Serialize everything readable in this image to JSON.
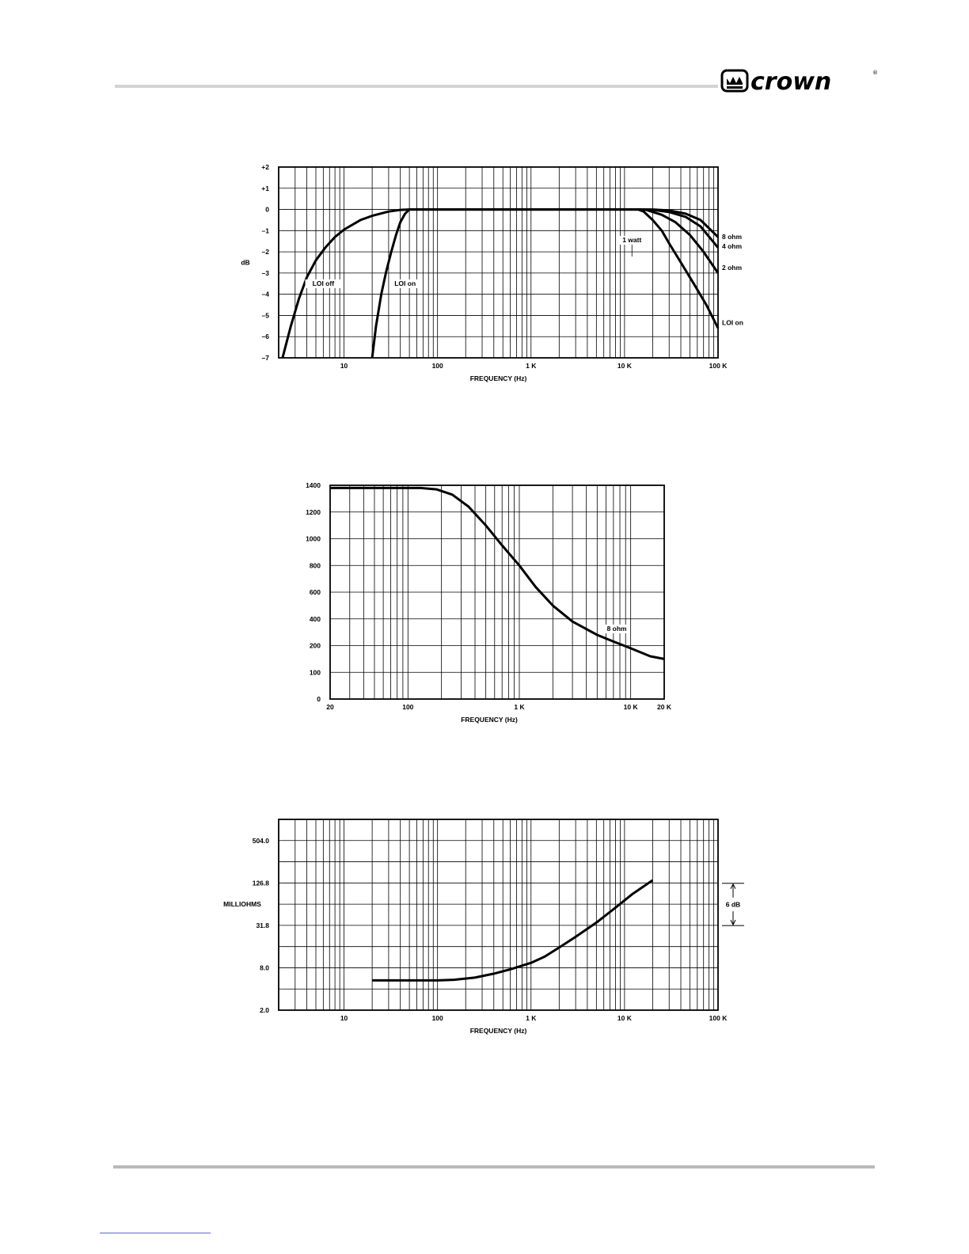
{
  "brand": {
    "name": "crown",
    "registered": "®"
  },
  "chart_data": [
    {
      "id": "chart1",
      "type": "line",
      "x_scale": "log",
      "xlim": [
        2,
        100000
      ],
      "ylim": [
        -7,
        2
      ],
      "xlabel": "FREQUENCY (Hz)",
      "ylabel": "dB",
      "grid": true,
      "y_ticks": [
        {
          "v": 2,
          "label": "+2"
        },
        {
          "v": 1,
          "label": "+1"
        },
        {
          "v": 0,
          "label": "0"
        },
        {
          "v": -1,
          "label": "–1"
        },
        {
          "v": -2,
          "label": "–2"
        },
        {
          "v": -3,
          "label": "–3"
        },
        {
          "v": -4,
          "label": "–4"
        },
        {
          "v": -5,
          "label": "–5"
        },
        {
          "v": -6,
          "label": "–6"
        },
        {
          "v": -7,
          "label": "–7"
        }
      ],
      "x_ticks": [
        {
          "v": 10,
          "label": "10"
        },
        {
          "v": 100,
          "label": "100"
        },
        {
          "v": 1000,
          "label": "1 K"
        },
        {
          "v": 10000,
          "label": "10 K"
        },
        {
          "v": 100000,
          "label": "100 K"
        }
      ],
      "series": [
        {
          "name": "LOI off",
          "points": [
            [
              2.2,
              -7
            ],
            [
              2.7,
              -5.5
            ],
            [
              3.3,
              -4.2
            ],
            [
              4,
              -3.2
            ],
            [
              5,
              -2.4
            ],
            [
              6.3,
              -1.8
            ],
            [
              8,
              -1.3
            ],
            [
              10,
              -0.95
            ],
            [
              15,
              -0.5
            ],
            [
              20,
              -0.3
            ],
            [
              30,
              -0.1
            ],
            [
              40,
              -0.02
            ],
            [
              50,
              0
            ],
            [
              14000,
              0
            ]
          ]
        },
        {
          "name": "LOI on",
          "points": [
            [
              20,
              -7
            ],
            [
              22,
              -5.5
            ],
            [
              25,
              -4
            ],
            [
              28,
              -3
            ],
            [
              32,
              -2
            ],
            [
              36,
              -1.2
            ],
            [
              40,
              -0.6
            ],
            [
              45,
              -0.2
            ],
            [
              50,
              0
            ],
            [
              14000,
              0
            ]
          ]
        },
        {
          "name": "8 ohm",
          "points": [
            [
              14000,
              0
            ],
            [
              20000,
              0
            ],
            [
              30000,
              -0.05
            ],
            [
              45000,
              -0.2
            ],
            [
              65000,
              -0.5
            ],
            [
              100000,
              -1.3
            ]
          ]
        },
        {
          "name": "4 ohm",
          "points": [
            [
              14000,
              0
            ],
            [
              20000,
              -0.02
            ],
            [
              30000,
              -0.12
            ],
            [
              45000,
              -0.35
            ],
            [
              65000,
              -0.8
            ],
            [
              100000,
              -1.8
            ]
          ]
        },
        {
          "name": "2 ohm",
          "points": [
            [
              14000,
              0
            ],
            [
              17000,
              -0.02
            ],
            [
              25000,
              -0.25
            ],
            [
              35000,
              -0.6
            ],
            [
              50000,
              -1.2
            ],
            [
              70000,
              -2
            ],
            [
              100000,
              -3
            ]
          ]
        },
        {
          "name": "LOI on",
          "points": [
            [
              14000,
              0
            ],
            [
              16000,
              -0.1
            ],
            [
              20000,
              -0.5
            ],
            [
              25000,
              -1
            ],
            [
              30000,
              -1.6
            ],
            [
              40000,
              -2.5
            ],
            [
              55000,
              -3.5
            ],
            [
              75000,
              -4.5
            ],
            [
              100000,
              -5.6
            ]
          ]
        }
      ],
      "annotations": [
        {
          "text": "LOI  off",
          "x": 6,
          "y": -3.6
        },
        {
          "text": "LOI  on",
          "x": 45,
          "y": -3.6
        },
        {
          "text": "1 watt",
          "x": 12000,
          "y": -1.55
        },
        {
          "text": "8 ohm",
          "x": 105000,
          "y": -1.4
        },
        {
          "text": "4 ohm",
          "x": 105000,
          "y": -1.85
        },
        {
          "text": "2 ohm",
          "x": 105000,
          "y": -2.85
        },
        {
          "text": "LOI on",
          "x": 105000,
          "y": -5.45
        }
      ]
    },
    {
      "id": "chart2",
      "type": "line",
      "x_scale": "log",
      "xlim": [
        20,
        20000
      ],
      "xlabel": "FREQUENCY (Hz)",
      "ylabel": "",
      "grid": true,
      "y_ticks": [
        {
          "v": 1400,
          "label": "1400"
        },
        {
          "v": 1200,
          "label": "1200"
        },
        {
          "v": 1000,
          "label": "1000"
        },
        {
          "v": 800,
          "label": "800"
        },
        {
          "v": 600,
          "label": "600"
        },
        {
          "v": 400,
          "label": "400"
        },
        {
          "v": 200,
          "label": "200"
        },
        {
          "v": 100,
          "label": "100"
        },
        {
          "v": 0,
          "label": "0"
        }
      ],
      "x_ticks": [
        {
          "v": 20,
          "label": "20"
        },
        {
          "v": 100,
          "label": "100"
        },
        {
          "v": 1000,
          "label": "1 K"
        },
        {
          "v": 10000,
          "label": "10 K"
        },
        {
          "v": 20000,
          "label": "20 K"
        }
      ],
      "series": [
        {
          "name": "8 ohm",
          "points": [
            [
              20,
              1380
            ],
            [
              130,
              1380
            ],
            [
              180,
              1370
            ],
            [
              250,
              1330
            ],
            [
              350,
              1240
            ],
            [
              500,
              1100
            ],
            [
              700,
              950
            ],
            [
              1000,
              800
            ],
            [
              1400,
              640
            ],
            [
              2000,
              500
            ],
            [
              3000,
              380
            ],
            [
              5000,
              280
            ],
            [
              7000,
              230
            ],
            [
              10000,
              190
            ],
            [
              15000,
              160
            ],
            [
              20000,
              150
            ]
          ]
        }
      ],
      "annotations": [
        {
          "text": "8 ohm",
          "x": 7500,
          "y": 310
        }
      ]
    },
    {
      "id": "chart3",
      "type": "line",
      "x_scale": "log",
      "y_scale": "log",
      "xlim": [
        2,
        100000
      ],
      "ylim": [
        2.0,
        1000
      ],
      "xlabel": "FREQUENCY (Hz)",
      "ylabel": "MILLIOHMS",
      "grid": true,
      "y_ticks": [
        {
          "v": 504.0,
          "label": "504.0"
        },
        {
          "v": 126.8,
          "label": "126.8"
        },
        {
          "v": 31.8,
          "label": "31.8"
        },
        {
          "v": 8.0,
          "label": "8.0"
        },
        {
          "v": 2.0,
          "label": "2.0"
        }
      ],
      "x_ticks": [
        {
          "v": 10,
          "label": "10"
        },
        {
          "v": 100,
          "label": "100"
        },
        {
          "v": 1000,
          "label": "1 K"
        },
        {
          "v": 10000,
          "label": "10 K"
        },
        {
          "v": 100000,
          "label": "100 K"
        }
      ],
      "series": [
        {
          "name": "",
          "points": [
            [
              20,
              5.3
            ],
            [
              100,
              5.3
            ],
            [
              150,
              5.4
            ],
            [
              250,
              5.8
            ],
            [
              400,
              6.6
            ],
            [
              600,
              7.6
            ],
            [
              1000,
              9.4
            ],
            [
              1400,
              11.5
            ],
            [
              2000,
              15.5
            ],
            [
              3000,
              22
            ],
            [
              5000,
              35
            ],
            [
              8000,
              57
            ],
            [
              12000,
              88
            ],
            [
              20000,
              140
            ]
          ]
        }
      ],
      "annotations": [
        {
          "text": "6 dB",
          "type": "dimension",
          "y_top": 126.8,
          "y_bottom": 31.8
        }
      ]
    }
  ]
}
